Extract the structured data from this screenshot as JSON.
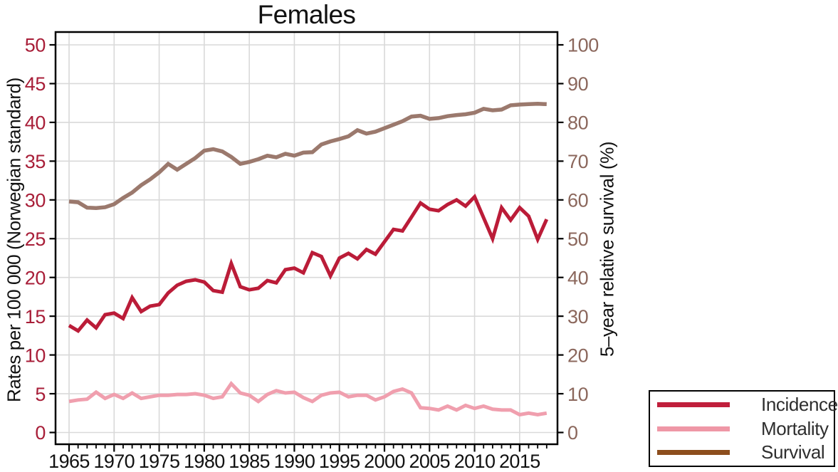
{
  "title": "Females",
  "axes": {
    "left": {
      "title": "Rates per 100 000 (Norwegian standard)",
      "tick_color": "#a81e38"
    },
    "right": {
      "title": "5–year relative survival (%)",
      "tick_color": "#8b675c"
    },
    "x": {
      "label_color": "#111111"
    }
  },
  "legend": {
    "items": [
      {
        "label": "Incidence",
        "color": "#c01f3c"
      },
      {
        "label": "Mortality",
        "color": "#ef97a6"
      },
      {
        "label": "Survival",
        "color": "#8d4e1d"
      }
    ]
  },
  "chart_data": {
    "type": "line",
    "title": "Females",
    "xlabel": "",
    "ylabel_left": "Rates per 100 000 (Norwegian standard)",
    "ylabel_right": "5–year relative survival (%)",
    "left_ylim": [
      0,
      50
    ],
    "right_ylim": [
      0,
      100
    ],
    "left_ticks": [
      0,
      5,
      10,
      15,
      20,
      25,
      30,
      35,
      40,
      45,
      50
    ],
    "right_ticks": [
      0,
      10,
      20,
      30,
      40,
      50,
      60,
      70,
      80,
      90,
      100
    ],
    "x_major_ticks": [
      1965,
      1970,
      1975,
      1980,
      1985,
      1990,
      1995,
      2000,
      2005,
      2010,
      2015
    ],
    "x_range": [
      1965,
      2018
    ],
    "grid": true,
    "grid_color": "#d9d9d9",
    "frame_color": "#000000",
    "legend_position": "bottom-right-outside",
    "x": [
      1965,
      1966,
      1967,
      1968,
      1969,
      1970,
      1971,
      1972,
      1973,
      1974,
      1975,
      1976,
      1977,
      1978,
      1979,
      1980,
      1981,
      1982,
      1983,
      1984,
      1985,
      1986,
      1987,
      1988,
      1989,
      1990,
      1991,
      1992,
      1993,
      1994,
      1995,
      1996,
      1997,
      1998,
      1999,
      2000,
      2001,
      2002,
      2003,
      2004,
      2005,
      2006,
      2007,
      2008,
      2009,
      2010,
      2011,
      2012,
      2013,
      2014,
      2015,
      2016,
      2017,
      2018
    ],
    "series": [
      {
        "name": "Incidence",
        "axis": "left",
        "color": "#bb1c38",
        "line_width": 5,
        "values": [
          13.8,
          13.1,
          14.5,
          13.5,
          15.2,
          15.4,
          14.7,
          17.4,
          15.6,
          16.3,
          16.5,
          18.0,
          19.0,
          19.5,
          19.7,
          19.4,
          18.3,
          18.1,
          21.8,
          18.8,
          18.4,
          18.6,
          19.6,
          19.3,
          21.0,
          21.2,
          20.6,
          23.2,
          22.7,
          20.2,
          22.5,
          23.1,
          22.4,
          23.6,
          23.0,
          24.6,
          26.2,
          26.0,
          27.8,
          29.6,
          28.8,
          28.6,
          29.4,
          30.0,
          29.2,
          30.4,
          27.7,
          25.0,
          29.0,
          27.4,
          29.0,
          27.9,
          24.9,
          27.5
        ]
      },
      {
        "name": "Mortality",
        "axis": "left",
        "color": "#f09fae",
        "line_width": 5,
        "values": [
          4.0,
          4.2,
          4.3,
          5.2,
          4.4,
          4.9,
          4.4,
          5.1,
          4.4,
          4.6,
          4.8,
          4.8,
          4.9,
          4.9,
          5.0,
          4.8,
          4.4,
          4.6,
          6.3,
          5.1,
          4.8,
          4.0,
          4.9,
          5.4,
          5.1,
          5.2,
          4.5,
          4.0,
          4.8,
          5.1,
          5.2,
          4.6,
          4.8,
          4.8,
          4.2,
          4.6,
          5.3,
          5.6,
          5.1,
          3.2,
          3.1,
          2.9,
          3.4,
          2.9,
          3.5,
          3.1,
          3.4,
          3.0,
          2.9,
          2.9,
          2.3,
          2.5,
          2.3,
          2.5
        ]
      },
      {
        "name": "Survival",
        "axis": "right",
        "color": "#9b796d",
        "line_width": 5.5,
        "values": [
          59.6,
          59.4,
          58.0,
          57.9,
          58.1,
          58.9,
          60.5,
          61.9,
          63.8,
          65.3,
          67.1,
          69.3,
          67.8,
          69.3,
          70.8,
          72.7,
          73.1,
          72.5,
          71.1,
          69.3,
          69.8,
          70.5,
          71.4,
          71.0,
          71.9,
          71.4,
          72.2,
          72.3,
          74.3,
          75.1,
          75.7,
          76.4,
          78.0,
          77.1,
          77.6,
          78.5,
          79.4,
          80.3,
          81.5,
          81.7,
          80.9,
          81.1,
          81.6,
          81.9,
          82.1,
          82.5,
          83.5,
          83.1,
          83.3,
          84.4,
          84.6,
          84.7,
          84.8,
          84.7
        ]
      }
    ]
  }
}
